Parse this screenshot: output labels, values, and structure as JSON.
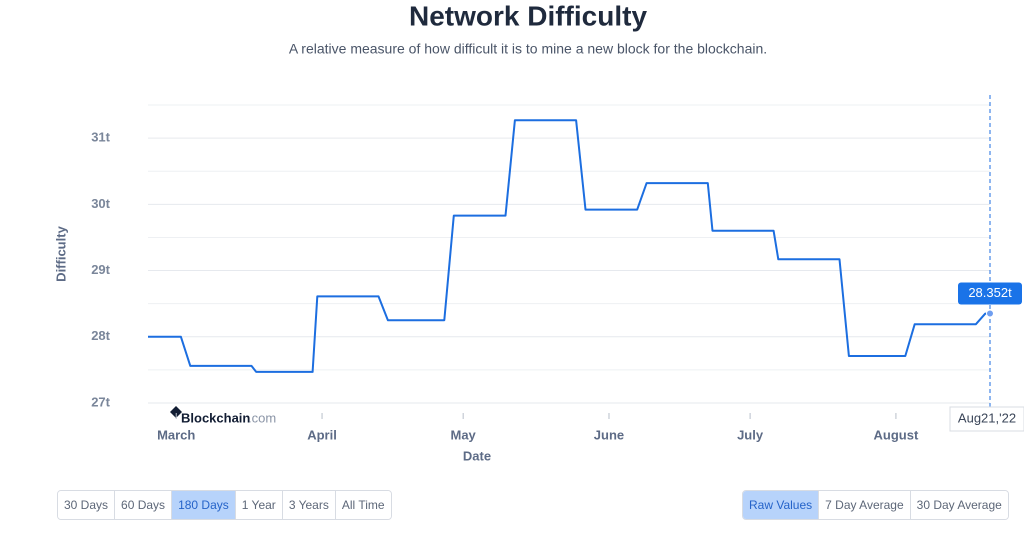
{
  "chart_data": {
    "type": "line",
    "title": "Network Difficulty",
    "subtitle": "A relative measure of how difficult it is to mine a new block for the blockchain.",
    "x_label": "Date",
    "y_label": "Difficulty",
    "x": [
      "2022-02-23",
      "2022-03-02",
      "2022-03-04",
      "2022-03-17",
      "2022-03-18",
      "2022-03-30",
      "2022-03-31",
      "2022-04-13",
      "2022-04-15",
      "2022-04-27",
      "2022-04-29",
      "2022-05-10",
      "2022-05-12",
      "2022-05-25",
      "2022-05-27",
      "2022-06-07",
      "2022-06-09",
      "2022-06-22",
      "2022-06-23",
      "2022-07-06",
      "2022-07-07",
      "2022-07-20",
      "2022-07-22",
      "2022-08-03",
      "2022-08-05",
      "2022-08-18",
      "2022-08-20",
      "2022-08-21"
    ],
    "values": [
      28.0,
      28.0,
      27.56,
      27.56,
      27.47,
      27.47,
      28.61,
      28.61,
      28.25,
      28.25,
      29.83,
      29.83,
      31.27,
      31.27,
      29.92,
      29.92,
      30.32,
      30.32,
      29.6,
      29.6,
      29.17,
      29.17,
      27.71,
      27.71,
      28.19,
      28.19,
      28.35,
      28.352
    ],
    "color": "#1c6ee0",
    "xlim": [
      "2022-02-23",
      "2022-08-21"
    ],
    "xticks": [
      {
        "value": "2022-03-01",
        "label": "March"
      },
      {
        "value": "2022-04-01",
        "label": "April"
      },
      {
        "value": "2022-05-01",
        "label": "May"
      },
      {
        "value": "2022-06-01",
        "label": "June"
      },
      {
        "value": "2022-07-01",
        "label": "July"
      },
      {
        "value": "2022-08-01",
        "label": "August"
      }
    ],
    "ylim": [
      27,
      31.5
    ],
    "yticks": [
      {
        "value": 27,
        "label": "27t"
      },
      {
        "value": 28,
        "label": "28t"
      },
      {
        "value": 29,
        "label": "29t"
      },
      {
        "value": 30,
        "label": "30t"
      },
      {
        "value": 31,
        "label": "31t"
      }
    ],
    "minor_yticks": [
      27.5,
      28.5,
      29.5,
      30.5,
      31.5
    ],
    "grid": true,
    "tooltip": {
      "date_label": "Aug21,'22",
      "value_label": "28.352t"
    },
    "watermark": {
      "brand": "Blockchain",
      "suffix": ".com"
    }
  },
  "controls": {
    "ranges": [
      {
        "label": "30 Days"
      },
      {
        "label": "60 Days"
      },
      {
        "label": "180 Days",
        "active": true
      },
      {
        "label": "1 Year"
      },
      {
        "label": "3 Years"
      },
      {
        "label": "All Time"
      }
    ],
    "modes": [
      {
        "label": "Raw Values",
        "active": true
      },
      {
        "label": "7 Day Average"
      },
      {
        "label": "30 Day Average"
      }
    ]
  }
}
